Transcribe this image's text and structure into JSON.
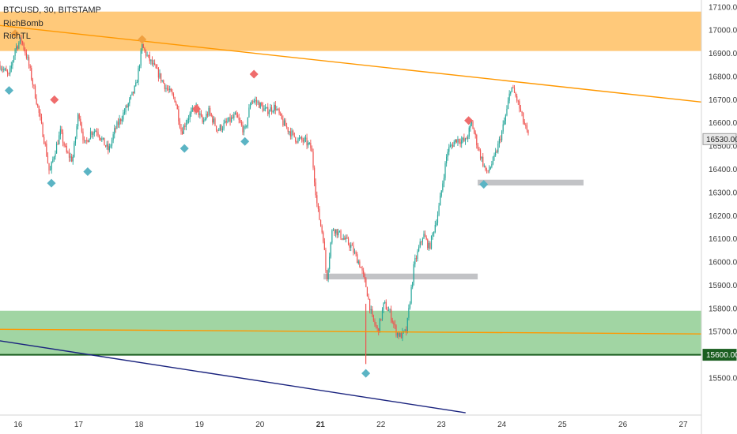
{
  "header": {
    "symbol": "BTCUSD, 30, BITSTAMP",
    "indicators": [
      "RichBomb",
      "RichTL"
    ]
  },
  "colors": {
    "up": "#26a69a",
    "down": "#ef5350",
    "resistance_zone": "#ffb74d",
    "support_zone": "#81c784",
    "support_line": "#1b5e20",
    "trendline": "#ff9800",
    "lower_trendline": "#1a237e",
    "gray_box": "#b7b8bc",
    "marker_low": "#5bb4c4",
    "marker_high": "#ef6c6c",
    "marker_orange": "#f0a040"
  },
  "price_badges": {
    "current": "16530.00",
    "support": "15600.00"
  },
  "chart_data": {
    "type": "candlestick",
    "title": "BTCUSD, 30, BITSTAMP",
    "x_axis": {
      "unit": "day",
      "range": [
        15.7,
        27.3
      ],
      "tick_values": [
        16,
        17,
        18,
        19,
        20,
        21,
        22,
        23,
        24,
        25,
        26,
        27
      ],
      "tick_labels": [
        "16",
        "17",
        "18",
        "19",
        "20",
        "21",
        "22",
        "23",
        "24",
        "25",
        "26",
        "27"
      ],
      "bold_ticks": [
        "21"
      ]
    },
    "y_axis": {
      "position": "right",
      "range": [
        15340,
        17130
      ],
      "tick_values": [
        15500,
        15600,
        15700,
        15800,
        15900,
        16000,
        16100,
        16200,
        16300,
        16400,
        16500,
        16600,
        16700,
        16800,
        16900,
        17000,
        17100
      ],
      "tick_labels": [
        "15500.00",
        "15600.00",
        "15700.00",
        "15800.00",
        "15900.00",
        "16000.00",
        "16100.00",
        "16200.00",
        "16300.00",
        "16400.00",
        "16500.00",
        "16600.00",
        "16700.00",
        "16800.00",
        "16900.00",
        "17000.00",
        "17100.00"
      ]
    },
    "grid": false,
    "legend": "top-left",
    "price_path": [
      [
        15.7,
        16850
      ],
      [
        15.85,
        16800
      ],
      [
        15.95,
        16920
      ],
      [
        16.05,
        16960
      ],
      [
        16.15,
        16880
      ],
      [
        16.3,
        16700
      ],
      [
        16.45,
        16500
      ],
      [
        16.52,
        16380
      ],
      [
        16.6,
        16470
      ],
      [
        16.7,
        16560
      ],
      [
        16.8,
        16470
      ],
      [
        16.9,
        16440
      ],
      [
        17.0,
        16650
      ],
      [
        17.1,
        16500
      ],
      [
        17.2,
        16560
      ],
      [
        17.3,
        16570
      ],
      [
        17.4,
        16520
      ],
      [
        17.5,
        16480
      ],
      [
        17.6,
        16570
      ],
      [
        17.7,
        16620
      ],
      [
        17.82,
        16680
      ],
      [
        17.95,
        16760
      ],
      [
        18.05,
        16930
      ],
      [
        18.15,
        16880
      ],
      [
        18.3,
        16820
      ],
      [
        18.45,
        16750
      ],
      [
        18.6,
        16700
      ],
      [
        18.7,
        16560
      ],
      [
        18.8,
        16620
      ],
      [
        18.95,
        16670
      ],
      [
        19.05,
        16600
      ],
      [
        19.15,
        16650
      ],
      [
        19.3,
        16570
      ],
      [
        19.45,
        16600
      ],
      [
        19.6,
        16630
      ],
      [
        19.75,
        16560
      ],
      [
        19.85,
        16700
      ],
      [
        19.95,
        16690
      ],
      [
        20.1,
        16650
      ],
      [
        20.25,
        16670
      ],
      [
        20.38,
        16600
      ],
      [
        20.5,
        16560
      ],
      [
        20.6,
        16530
      ],
      [
        20.75,
        16520
      ],
      [
        20.85,
        16490
      ],
      [
        20.95,
        16230
      ],
      [
        21.05,
        16100
      ],
      [
        21.1,
        15920
      ],
      [
        21.2,
        16150
      ],
      [
        21.35,
        16110
      ],
      [
        21.5,
        16070
      ],
      [
        21.65,
        15990
      ],
      [
        21.75,
        15900
      ],
      [
        21.85,
        15760
      ],
      [
        21.95,
        15700
      ],
      [
        22.05,
        15820
      ],
      [
        22.15,
        15780
      ],
      [
        22.25,
        15700
      ],
      [
        22.32,
        15680
      ],
      [
        22.42,
        15700
      ],
      [
        22.55,
        15990
      ],
      [
        22.7,
        16120
      ],
      [
        22.8,
        16060
      ],
      [
        22.95,
        16220
      ],
      [
        23.1,
        16480
      ],
      [
        23.25,
        16530
      ],
      [
        23.4,
        16520
      ],
      [
        23.5,
        16600
      ],
      [
        23.62,
        16480
      ],
      [
        23.75,
        16380
      ],
      [
        23.88,
        16450
      ],
      [
        24.0,
        16560
      ],
      [
        24.08,
        16650
      ],
      [
        24.15,
        16760
      ],
      [
        24.25,
        16700
      ],
      [
        24.35,
        16610
      ],
      [
        24.45,
        16530
      ]
    ],
    "resistance_zone": [
      16910,
      17080
    ],
    "support_zone": [
      15600,
      15790
    ],
    "support_level": 15600,
    "gray_boxes": [
      {
        "x": [
          21.05,
          23.6
        ],
        "y": [
          15925,
          15950
        ]
      },
      {
        "x": [
          23.6,
          25.35
        ],
        "y": [
          16330,
          16355
        ]
      }
    ],
    "trendlines": [
      {
        "x": [
          15.7,
          27.3
        ],
        "y": [
          17020,
          16690
        ]
      },
      {
        "x": [
          15.7,
          27.3
        ],
        "y": [
          15710,
          15690
        ]
      },
      {
        "x": [
          15.7,
          23.4
        ],
        "y": [
          15660,
          15350
        ]
      }
    ],
    "signals": [
      {
        "kind": "high",
        "x": 16.6,
        "y": 16700
      },
      {
        "kind": "high",
        "x": 19.9,
        "y": 16810
      },
      {
        "kind": "high",
        "x": 18.95,
        "y": 16660
      },
      {
        "kind": "high",
        "x": 23.45,
        "y": 16610
      },
      {
        "kind": "orange",
        "x": 15.95,
        "y": 16985
      },
      {
        "kind": "orange",
        "x": 18.05,
        "y": 16960
      },
      {
        "kind": "low",
        "x": 15.85,
        "y": 16740
      },
      {
        "kind": "low",
        "x": 16.55,
        "y": 16340
      },
      {
        "kind": "low",
        "x": 17.15,
        "y": 16390
      },
      {
        "kind": "low",
        "x": 18.75,
        "y": 16490
      },
      {
        "kind": "low",
        "x": 19.75,
        "y": 16520
      },
      {
        "kind": "low",
        "x": 21.75,
        "y": 15520
      },
      {
        "kind": "low",
        "x": 23.7,
        "y": 16335
      }
    ],
    "current_price": 16530
  }
}
